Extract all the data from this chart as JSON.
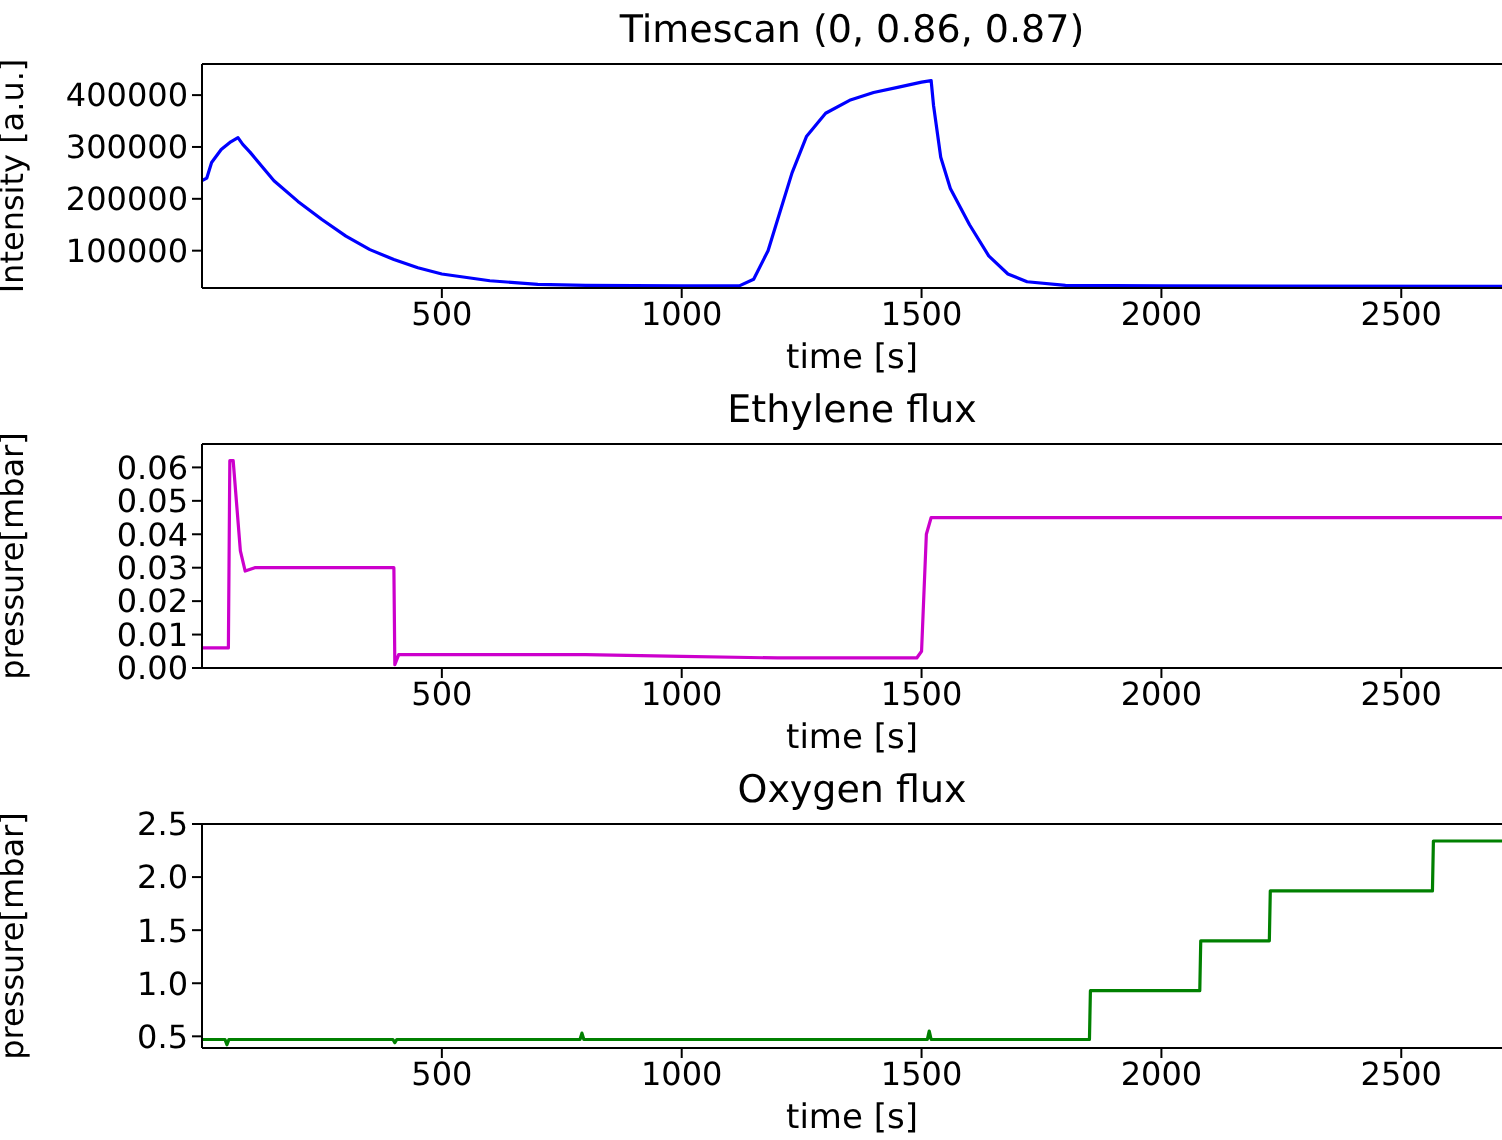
{
  "chart_data": [
    {
      "type": "line",
      "title": "Timescan (0, 0.86, 0.87)",
      "xlabel": "time [s]",
      "ylabel": "Intensity [a.u.]",
      "xlim": [
        0,
        2710
      ],
      "xticks": [
        500,
        1000,
        1500,
        2000,
        2500
      ],
      "ylim": [
        28000,
        460000
      ],
      "yticks": [
        100000,
        200000,
        300000,
        400000
      ],
      "grid": false,
      "legend": false,
      "marker": "none",
      "line_style": "solid",
      "series": [
        {
          "color": "#0000ff",
          "x": [
            0,
            10,
            20,
            40,
            60,
            75,
            85,
            100,
            150,
            200,
            250,
            300,
            350,
            400,
            450,
            500,
            600,
            700,
            800,
            1000,
            1120,
            1150,
            1180,
            1200,
            1230,
            1260,
            1300,
            1350,
            1400,
            1450,
            1500,
            1520,
            1525,
            1540,
            1560,
            1600,
            1640,
            1680,
            1720,
            1800,
            2000,
            2710
          ],
          "values": [
            235000,
            240000,
            270000,
            295000,
            310000,
            318000,
            305000,
            290000,
            235000,
            195000,
            160000,
            128000,
            102000,
            83000,
            67000,
            55000,
            42000,
            35000,
            33000,
            32000,
            32000,
            45000,
            100000,
            160000,
            250000,
            320000,
            365000,
            390000,
            405000,
            415000,
            425000,
            428000,
            380000,
            280000,
            220000,
            150000,
            90000,
            55000,
            40000,
            33000,
            32000,
            31000
          ]
        }
      ]
    },
    {
      "type": "line",
      "title": "Ethylene flux",
      "xlabel": "time [s]",
      "ylabel": "pressure[mbar]",
      "xlim": [
        0,
        2710
      ],
      "xticks": [
        500,
        1000,
        1500,
        2000,
        2500
      ],
      "ylim": [
        0,
        0.067
      ],
      "yticks": [
        {
          "value": 0,
          "label": "0.00"
        },
        {
          "value": 0.01,
          "label": "0.01"
        },
        {
          "value": 0.02,
          "label": "0.02"
        },
        {
          "value": 0.03,
          "label": "0.03"
        },
        {
          "value": 0.04,
          "label": "0.04"
        },
        {
          "value": 0.05,
          "label": "0.05"
        },
        {
          "value": 0.06,
          "label": "0.06"
        }
      ],
      "grid": false,
      "legend": false,
      "marker": "none",
      "line_style": "solid",
      "series": [
        {
          "color": "#cc00cc",
          "x": [
            0,
            55,
            58,
            65,
            80,
            90,
            110,
            400,
            402,
            410,
            600,
            800,
            1000,
            1200,
            1490,
            1500,
            1510,
            1520,
            2710
          ],
          "values": [
            0.006,
            0.006,
            0.062,
            0.062,
            0.035,
            0.029,
            0.03,
            0.03,
            0.001,
            0.004,
            0.004,
            0.004,
            0.0035,
            0.003,
            0.003,
            0.005,
            0.04,
            0.045,
            0.045
          ]
        }
      ]
    },
    {
      "type": "line",
      "title": "Oxygen flux",
      "xlabel": "time [s]",
      "ylabel": "pressure[mbar]",
      "xlim": [
        0,
        2710
      ],
      "xticks": [
        500,
        1000,
        1500,
        2000,
        2500
      ],
      "ylim": [
        0.39,
        2.5
      ],
      "yticks": [
        0.5,
        {
          "value": 1,
          "label": "1.0"
        },
        1.5,
        {
          "value": 2,
          "label": "2.0"
        },
        2.5
      ],
      "grid": false,
      "legend": false,
      "marker": "none",
      "line_style": "solid",
      "series": [
        {
          "color": "#008000",
          "x": [
            0,
            48,
            52,
            56,
            398,
            402,
            406,
            788,
            792,
            796,
            1512,
            1516,
            1520,
            1850,
            1852,
            2080,
            2082,
            2225,
            2227,
            2565,
            2567,
            2710
          ],
          "values": [
            0.47,
            0.47,
            0.42,
            0.47,
            0.47,
            0.44,
            0.47,
            0.47,
            0.53,
            0.47,
            0.47,
            0.55,
            0.47,
            0.47,
            0.93,
            0.93,
            1.4,
            1.4,
            1.87,
            1.87,
            2.34,
            2.34
          ]
        }
      ]
    }
  ]
}
